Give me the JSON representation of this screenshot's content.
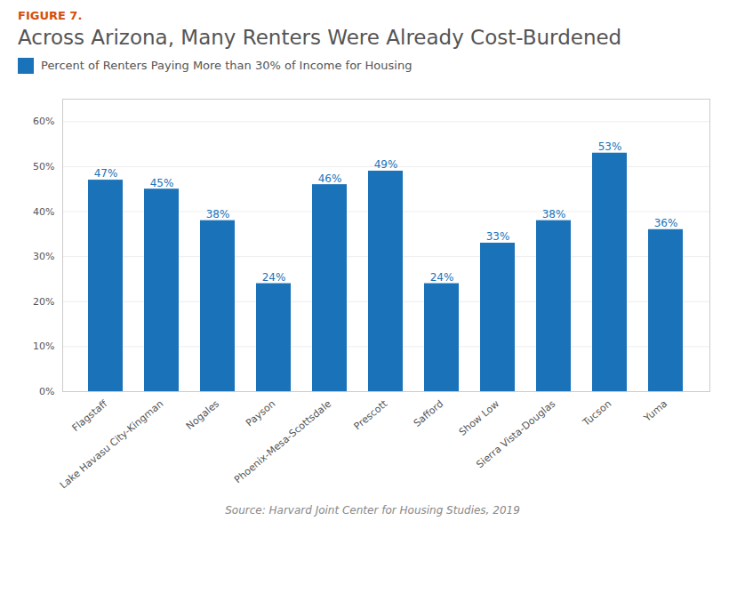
{
  "chart_data": {
    "type": "bar",
    "annotations": [
      "FIGURE 7."
    ],
    "title": "Across Arizona, Many Renters Were Already Cost-Burdened",
    "categories": [
      "Flagstaff",
      "Lake Havasu City-Kingman",
      "Nogales",
      "Payson",
      "Phoenix-Mesa-Scottsdale",
      "Prescott",
      "Safford",
      "Show Low",
      "Sierra Vista-Douglas",
      "Tucson",
      "Yuma"
    ],
    "series": [
      {
        "name": "Percent of Renters Paying More than 30% of Income for Housing",
        "color": "#1a72b8",
        "values": [
          47,
          45,
          38,
          24,
          46,
          49,
          24,
          33,
          38,
          53,
          36
        ],
        "value_labels": [
          "47%",
          "45%",
          "38%",
          "24%",
          "46%",
          "49%",
          "24%",
          "33%",
          "38%",
          "53%",
          "36%"
        ]
      }
    ],
    "ylim": [
      0,
      65
    ],
    "yticks": [
      {
        "value": 0,
        "label": "0%"
      },
      {
        "value": 10,
        "label": "10%"
      },
      {
        "value": 20,
        "label": "20%"
      },
      {
        "value": 30,
        "label": "30%"
      },
      {
        "value": 40,
        "label": "40%"
      },
      {
        "value": 50,
        "label": "50%"
      },
      {
        "value": 60,
        "label": "60%"
      }
    ],
    "grid": true,
    "legend": "top",
    "data_labels": true,
    "source": "Source: Harvard Joint Center for Housing Studies, 2019"
  }
}
